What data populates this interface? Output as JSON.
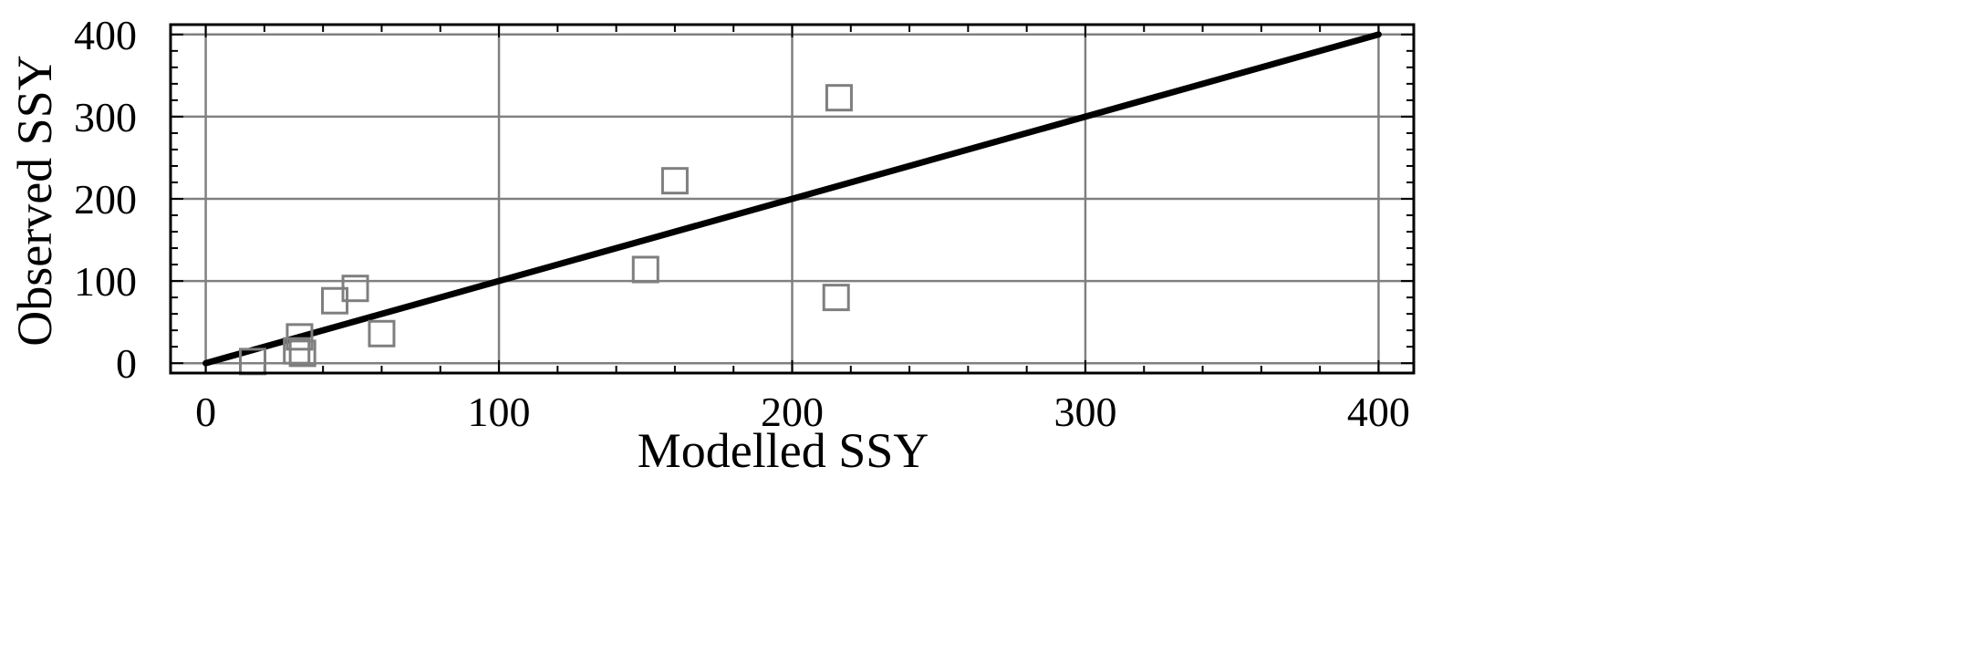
{
  "chart_data": {
    "type": "scatter",
    "title": "",
    "xlabel": "Modelled SSY",
    "ylabel": "Observed SSY",
    "xlim": [
      -12,
      412
    ],
    "ylim": [
      -12,
      412
    ],
    "x_ticks": [
      0,
      100,
      200,
      300,
      400
    ],
    "y_ticks": [
      0,
      100,
      200,
      300,
      400
    ],
    "x_tick_labels": [
      "0",
      "100",
      "200",
      "300",
      "400"
    ],
    "y_tick_labels": [
      "0",
      "100",
      "200",
      "300",
      "400"
    ],
    "grid": true,
    "marker": "open-square",
    "colors": {
      "marker": "#7f7f7f",
      "grid": "#808080",
      "line": "#000000",
      "frame": "#000000"
    },
    "reference_line": {
      "x": [
        0,
        400
      ],
      "y": [
        0,
        400
      ]
    },
    "points": [
      {
        "x": 16,
        "y": 2
      },
      {
        "x": 32,
        "y": 32
      },
      {
        "x": 31,
        "y": 15
      },
      {
        "x": 33,
        "y": 12
      },
      {
        "x": 44,
        "y": 76
      },
      {
        "x": 51,
        "y": 91
      },
      {
        "x": 60,
        "y": 36
      },
      {
        "x": 150,
        "y": 114
      },
      {
        "x": 160,
        "y": 222
      },
      {
        "x": 215,
        "y": 80
      },
      {
        "x": 216,
        "y": 323
      }
    ]
  }
}
